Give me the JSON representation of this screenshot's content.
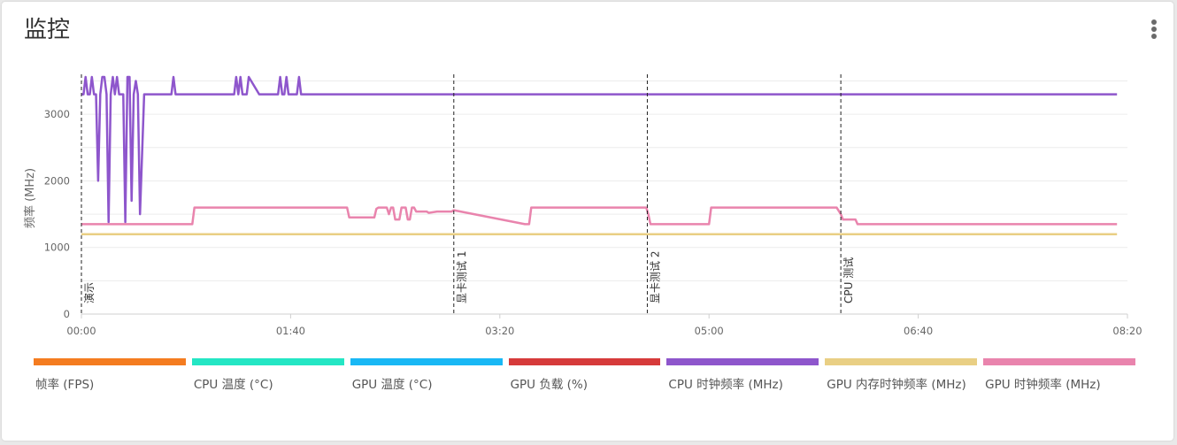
{
  "page": {
    "title": "监控",
    "menu_icon": "more-vertical-icon"
  },
  "chart_data": {
    "type": "line",
    "ylabel": "频率 (MHz)",
    "xlabel": "",
    "ylim": [
      0,
      3600
    ],
    "yticks": [
      0,
      1000,
      2000,
      3000
    ],
    "xlim": [
      0,
      500
    ],
    "xticks": [
      0,
      100,
      200,
      300,
      400,
      500
    ],
    "xtick_labels": [
      "00:00",
      "01:40",
      "03:20",
      "05:00",
      "06:40",
      "08:20"
    ],
    "grid": true,
    "legend_position": "bottom",
    "markers": [
      {
        "x": 0,
        "label": "演示"
      },
      {
        "x": 178,
        "label": "显卡测试 1"
      },
      {
        "x": 270.5,
        "label": "显卡测试 2"
      },
      {
        "x": 363,
        "label": "CPU 测试"
      }
    ],
    "legend": [
      {
        "name": "帧率 (FPS)",
        "color": "#f47c20"
      },
      {
        "name": "CPU 温度 (°C)",
        "color": "#24e6c4"
      },
      {
        "name": "GPU 温度 (°C)",
        "color": "#19b8f5"
      },
      {
        "name": "GPU 负载 (%)",
        "color": "#d63a3a"
      },
      {
        "name": "CPU 时钟频率 (MHz)",
        "color": "#8e56cc"
      },
      {
        "name": "GPU 内存时钟频率 (MHz)",
        "color": "#e9cf84"
      },
      {
        "name": "GPU 时钟频率 (MHz)",
        "color": "#e984ad"
      }
    ],
    "series": [
      {
        "name": "CPU 时钟频率 (MHz)",
        "color": "#8e56cc",
        "x": [
          0,
          1,
          2,
          3,
          4,
          5,
          6,
          7,
          8,
          9,
          10,
          11,
          12,
          13,
          14,
          15,
          16,
          17,
          18,
          19,
          20,
          21,
          22,
          23,
          24,
          25,
          26,
          27,
          28,
          30,
          40,
          43,
          44,
          45,
          60,
          73,
          74,
          75,
          76,
          77,
          78,
          79,
          80,
          85,
          86,
          87,
          88,
          89,
          90,
          91,
          92,
          93,
          94,
          95,
          96,
          97,
          98,
          99,
          100,
          103,
          104,
          105,
          106,
          108,
          110,
          118,
          120,
          125,
          128,
          129,
          130,
          131,
          132,
          133,
          150,
          153,
          154,
          155,
          156,
          158,
          160,
          162,
          163,
          164,
          165,
          166,
          167,
          168,
          170,
          172,
          174,
          176,
          177,
          178,
          179,
          180,
          181,
          182,
          183,
          184,
          185,
          186,
          187,
          188,
          189,
          190,
          191,
          192,
          193,
          194,
          195,
          196,
          197,
          198,
          199,
          200,
          201,
          205,
          212,
          213,
          214,
          215,
          216,
          217,
          218,
          219,
          220,
          221,
          222,
          223,
          224,
          225,
          226,
          227,
          228,
          229,
          230,
          231,
          232,
          233,
          234,
          235,
          236,
          237,
          238,
          239,
          240,
          241,
          242,
          243,
          244,
          245,
          246,
          247,
          248,
          249,
          250,
          251,
          252,
          253,
          254,
          255,
          256,
          257,
          258,
          259,
          260,
          261,
          262,
          263,
          264,
          265,
          266,
          267,
          268,
          269,
          270,
          271,
          272,
          273,
          274,
          275,
          276,
          277,
          278,
          279,
          280,
          281,
          282,
          283,
          284,
          285,
          286,
          287,
          288,
          289,
          290,
          291,
          292,
          293,
          294,
          295,
          296,
          297,
          298,
          299,
          300,
          301,
          302,
          303,
          304,
          305,
          306,
          307,
          308,
          309,
          310,
          311,
          312,
          313,
          314,
          315,
          316,
          317,
          318,
          319,
          320,
          321,
          322,
          323,
          324,
          325,
          326,
          327,
          328,
          329,
          330,
          331,
          332,
          333,
          334,
          335,
          336,
          337,
          338,
          339,
          340,
          341,
          342,
          343,
          344,
          345,
          346,
          347,
          348,
          349,
          350,
          351,
          352,
          353,
          354,
          355,
          356,
          357,
          358,
          359,
          360,
          361,
          362,
          363,
          364,
          365,
          366,
          367,
          368,
          369,
          370,
          371,
          372,
          373,
          374,
          375,
          376,
          377,
          378,
          379,
          380,
          381,
          382,
          383,
          384,
          385,
          386,
          387,
          388,
          389,
          390,
          391,
          392,
          393,
          394,
          395,
          396,
          397,
          398,
          399,
          400,
          401,
          402,
          403,
          404,
          405,
          406,
          407,
          408,
          409,
          410,
          411,
          412,
          413,
          414,
          415,
          416,
          417,
          418,
          419,
          420,
          421,
          422,
          423,
          424,
          425,
          426,
          427,
          428,
          429,
          430,
          431,
          432,
          433,
          434,
          435,
          436,
          437,
          438,
          439,
          440,
          441,
          442,
          443,
          444,
          445,
          446,
          447,
          448,
          449,
          450,
          451,
          452,
          453,
          454,
          455,
          456,
          457,
          458,
          459,
          460,
          461,
          462,
          463,
          464,
          465,
          466,
          467,
          468,
          469,
          470,
          471,
          472,
          473,
          474,
          475,
          476,
          477,
          478,
          479,
          480,
          481,
          482,
          483,
          484,
          485,
          486,
          487,
          488,
          489,
          490,
          491,
          492,
          493,
          494,
          495
        ],
        "y": [
          3300,
          3300,
          3560,
          3300,
          3300,
          3560,
          3300,
          3300,
          2000,
          3300,
          3560,
          3560,
          3300,
          1380,
          3300,
          3560,
          3300,
          3560,
          3300,
          3300,
          3300,
          1380,
          3560,
          3560,
          1700,
          3300,
          3500,
          3300,
          1500,
          3300,
          3300,
          3300,
          3560,
          3300,
          3300,
          3300,
          3560,
          3300,
          3560,
          3300,
          3300,
          3300,
          3560,
          3300,
          3300,
          3300,
          3300,
          3300,
          3300,
          3300,
          3300,
          3300,
          3300,
          3560,
          3300,
          3300,
          3560,
          3300,
          3300,
          3300,
          3560,
          3300,
          3300,
          3300,
          3300,
          3300,
          3300,
          3300,
          3300,
          3300,
          3300,
          3300,
          3300,
          3300,
          3300,
          3300,
          3300,
          3300,
          3300,
          3300,
          3300,
          3300,
          3300,
          3300,
          3300,
          3300,
          3300,
          3300,
          3300,
          3300,
          3300,
          3300,
          3300,
          3300,
          3300,
          3300,
          3300,
          3300,
          3300,
          3300,
          3300,
          3300,
          3300,
          3300,
          3300,
          3300,
          3300,
          3300,
          3300,
          3300,
          3300,
          3300,
          3300,
          3300,
          3300,
          3300,
          3300,
          3300,
          3300,
          3300,
          3300,
          3300,
          3300,
          3300,
          3300,
          3300,
          3300,
          3300,
          3300,
          3300,
          3300,
          3300,
          3300,
          3300,
          3300,
          3300,
          3300,
          3300,
          3300,
          3300,
          3300,
          3300,
          3300,
          3300,
          3300,
          3300,
          3300,
          3300,
          3300,
          3300,
          3300,
          3300,
          3300,
          3300,
          3300,
          3300,
          3300,
          3300,
          3300,
          3300,
          3300,
          3300,
          3300,
          3300,
          3300,
          3300,
          3300,
          3300,
          3300,
          3300,
          3300,
          3300,
          3300,
          3300,
          3300,
          3300,
          3300,
          3300,
          3300,
          3300,
          3300,
          3300,
          3300,
          3300,
          3300,
          3300,
          3300,
          3300,
          3300,
          3300,
          3300,
          3300,
          3300,
          3300,
          3300,
          3300,
          3300,
          3300,
          3300,
          3300,
          3300,
          3300,
          3300,
          3300,
          3300,
          3300,
          3300,
          3300,
          3300,
          3300,
          3300,
          3300,
          3300,
          3300,
          3300,
          3300,
          3300,
          3300,
          3300,
          3300,
          3300,
          3300,
          3300,
          3300,
          3300,
          3300,
          3300,
          3300,
          3300,
          3300,
          3300,
          3300,
          3300,
          3300,
          3300,
          3300,
          3300,
          3300,
          3300,
          3300,
          3300,
          3300,
          3300,
          3300,
          3300,
          3300,
          3300,
          3300,
          3300,
          3300,
          3300,
          3300,
          3300,
          3300,
          3300,
          3300,
          3300,
          3300,
          3300,
          3300,
          3300,
          3300,
          3300,
          3300,
          3300,
          3300,
          3300,
          3300,
          3300,
          3300,
          3300,
          3300,
          3300,
          3300,
          3300,
          3300,
          3300,
          3300,
          3300,
          3300,
          3300,
          3300,
          3300,
          3300,
          3300,
          3300,
          3300,
          3300,
          3300,
          3300,
          3300,
          3300,
          3300,
          3300,
          3300,
          3300,
          3300,
          3300,
          3300,
          3300,
          3300,
          3300,
          3300,
          3300,
          3300,
          3300,
          3300,
          3300,
          3300,
          3300,
          3300,
          3300,
          3300,
          3300,
          3300,
          3300,
          3300,
          3300,
          3300,
          3300,
          3300,
          3300,
          3300,
          3300,
          3300,
          3300,
          3300,
          3300,
          3300,
          3300,
          3300,
          3300,
          3300,
          3300,
          3300,
          3300,
          3300,
          3300,
          3300,
          3300,
          3300,
          3300,
          3300,
          3300,
          3300,
          3300,
          3300,
          3300,
          3300,
          3300,
          3300,
          3300,
          3300,
          3300,
          3300,
          3300,
          3300,
          3300,
          3300,
          3300,
          3300,
          3300,
          3300,
          3300,
          3300,
          3300,
          3300,
          3300,
          3300,
          3300,
          3300,
          3300,
          3300,
          3300,
          3300,
          3300,
          3300,
          3300,
          3300,
          3300,
          3300,
          3300,
          3300,
          3300,
          3300,
          3300,
          3300,
          3300,
          3300,
          3300,
          3300,
          3300,
          3300,
          3300,
          3300,
          3300,
          3300,
          3300,
          3300,
          3300,
          3300,
          3300
        ]
      },
      {
        "name": "GPU 时钟频率 (MHz)",
        "color": "#e984ad",
        "x": [
          0,
          53,
          54,
          55,
          127,
          128,
          130,
          132,
          140,
          141,
          142,
          144,
          146,
          147,
          148,
          149,
          150,
          152,
          153,
          155,
          156,
          157,
          158,
          159,
          160,
          161,
          162,
          165,
          166,
          170,
          174,
          177,
          178,
          212,
          214,
          215,
          270,
          271,
          272,
          300,
          301,
          302,
          360,
          361,
          363,
          364,
          365,
          370,
          371,
          372,
          380,
          495
        ],
        "y": [
          1350,
          1350,
          1600,
          1600,
          1600,
          1450,
          1450,
          1450,
          1450,
          1580,
          1600,
          1600,
          1600,
          1500,
          1600,
          1600,
          1420,
          1420,
          1600,
          1600,
          1420,
          1420,
          1600,
          1600,
          1540,
          1540,
          1540,
          1540,
          1520,
          1540,
          1540,
          1540,
          1560,
          1350,
          1350,
          1600,
          1600,
          1500,
          1350,
          1350,
          1600,
          1600,
          1600,
          1600,
          1500,
          1420,
          1420,
          1420,
          1350,
          1350,
          1350,
          1350
        ]
      },
      {
        "name": "GPU 内存时钟频率 (MHz)",
        "color": "#e9cf84",
        "x": [
          0,
          495
        ],
        "y": [
          1200,
          1200
        ]
      }
    ]
  }
}
